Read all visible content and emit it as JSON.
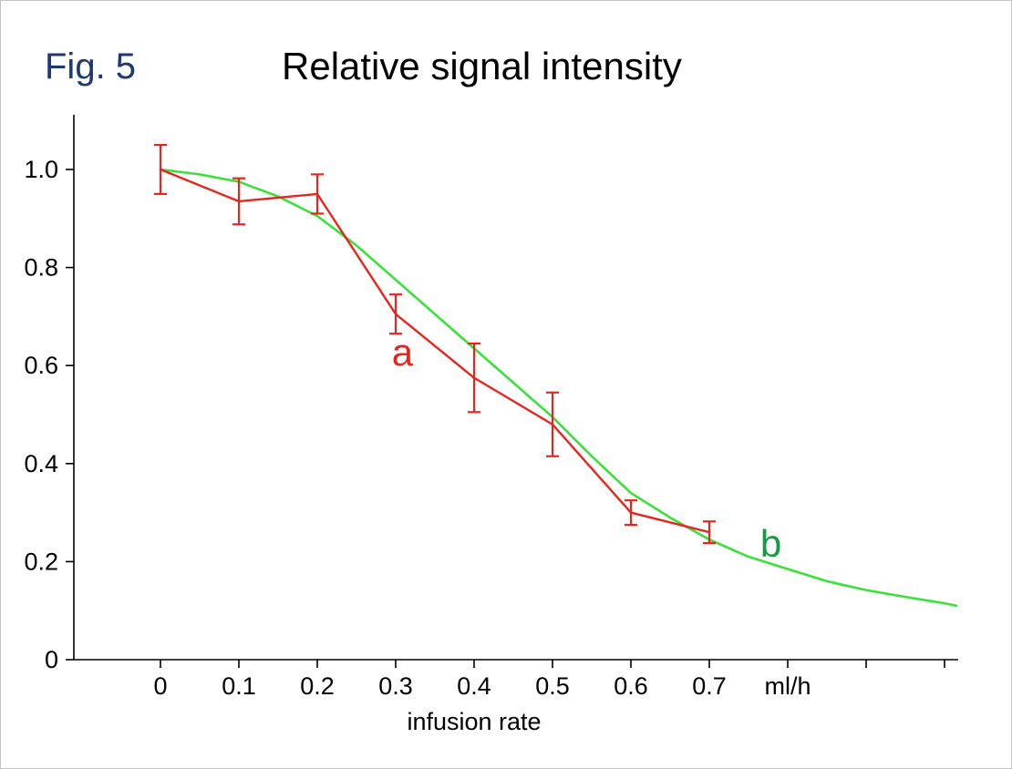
{
  "figure": {
    "label": "Fig. 5",
    "title": "Relative signal intensity"
  },
  "colors": {
    "fig_label": "#1d3a6e",
    "title": "#000000",
    "axis": "#000000",
    "series_a": "#e8251d",
    "series_b": "#3be13b",
    "series_b_label": "#149a43"
  },
  "chart_data": {
    "type": "line",
    "title": "Relative signal intensity",
    "xlabel": "infusion rate",
    "x_unit": "ml/h",
    "ylabel": "",
    "xlim": [
      -0.11,
      1.02
    ],
    "ylim": [
      0,
      1.11
    ],
    "grid": false,
    "legend": "inline-labels",
    "x_ticks": [
      0,
      0.1,
      0.2,
      0.3,
      0.4,
      0.5,
      0.6,
      0.7,
      0.8,
      0.9,
      1.0
    ],
    "x_tick_labels": [
      "0",
      "0.1",
      "0.2",
      "0.3",
      "0.4",
      "0.5",
      "0.6",
      "0.7"
    ],
    "unit_tick": 0.8,
    "y_ticks": [
      0,
      0.2,
      0.4,
      0.6,
      0.8,
      1.0
    ],
    "y_tick_labels": [
      "0",
      "0.2",
      "0.4",
      "0.6",
      "0.8",
      "1.0"
    ],
    "series": [
      {
        "name": "b",
        "style": "smooth_line",
        "color": "#3be13b",
        "label_color": "#149a43",
        "label_pos": {
          "x": 0.765,
          "y": 0.21
        },
        "x": [
          0,
          0.05,
          0.1,
          0.15,
          0.2,
          0.25,
          0.3,
          0.35,
          0.4,
          0.45,
          0.5,
          0.55,
          0.6,
          0.65,
          0.7,
          0.75,
          0.8,
          0.85,
          0.9,
          0.95,
          1.0,
          1.015
        ],
        "y": [
          1.0,
          0.99,
          0.975,
          0.945,
          0.905,
          0.845,
          0.775,
          0.705,
          0.635,
          0.565,
          0.495,
          0.415,
          0.34,
          0.29,
          0.245,
          0.21,
          0.185,
          0.16,
          0.142,
          0.128,
          0.115,
          0.11
        ]
      },
      {
        "name": "a",
        "style": "line_with_error_bars",
        "color": "#e8251d",
        "label_color": "#e8251d",
        "label_pos": {
          "x": 0.295,
          "y": 0.6
        },
        "x": [
          0,
          0.1,
          0.2,
          0.3,
          0.4,
          0.5,
          0.6,
          0.7
        ],
        "y": [
          1.0,
          0.935,
          0.95,
          0.705,
          0.575,
          0.48,
          0.3,
          0.26
        ],
        "yerr": [
          0.05,
          0.047,
          0.04,
          0.04,
          0.07,
          0.065,
          0.025,
          0.022
        ]
      }
    ]
  }
}
